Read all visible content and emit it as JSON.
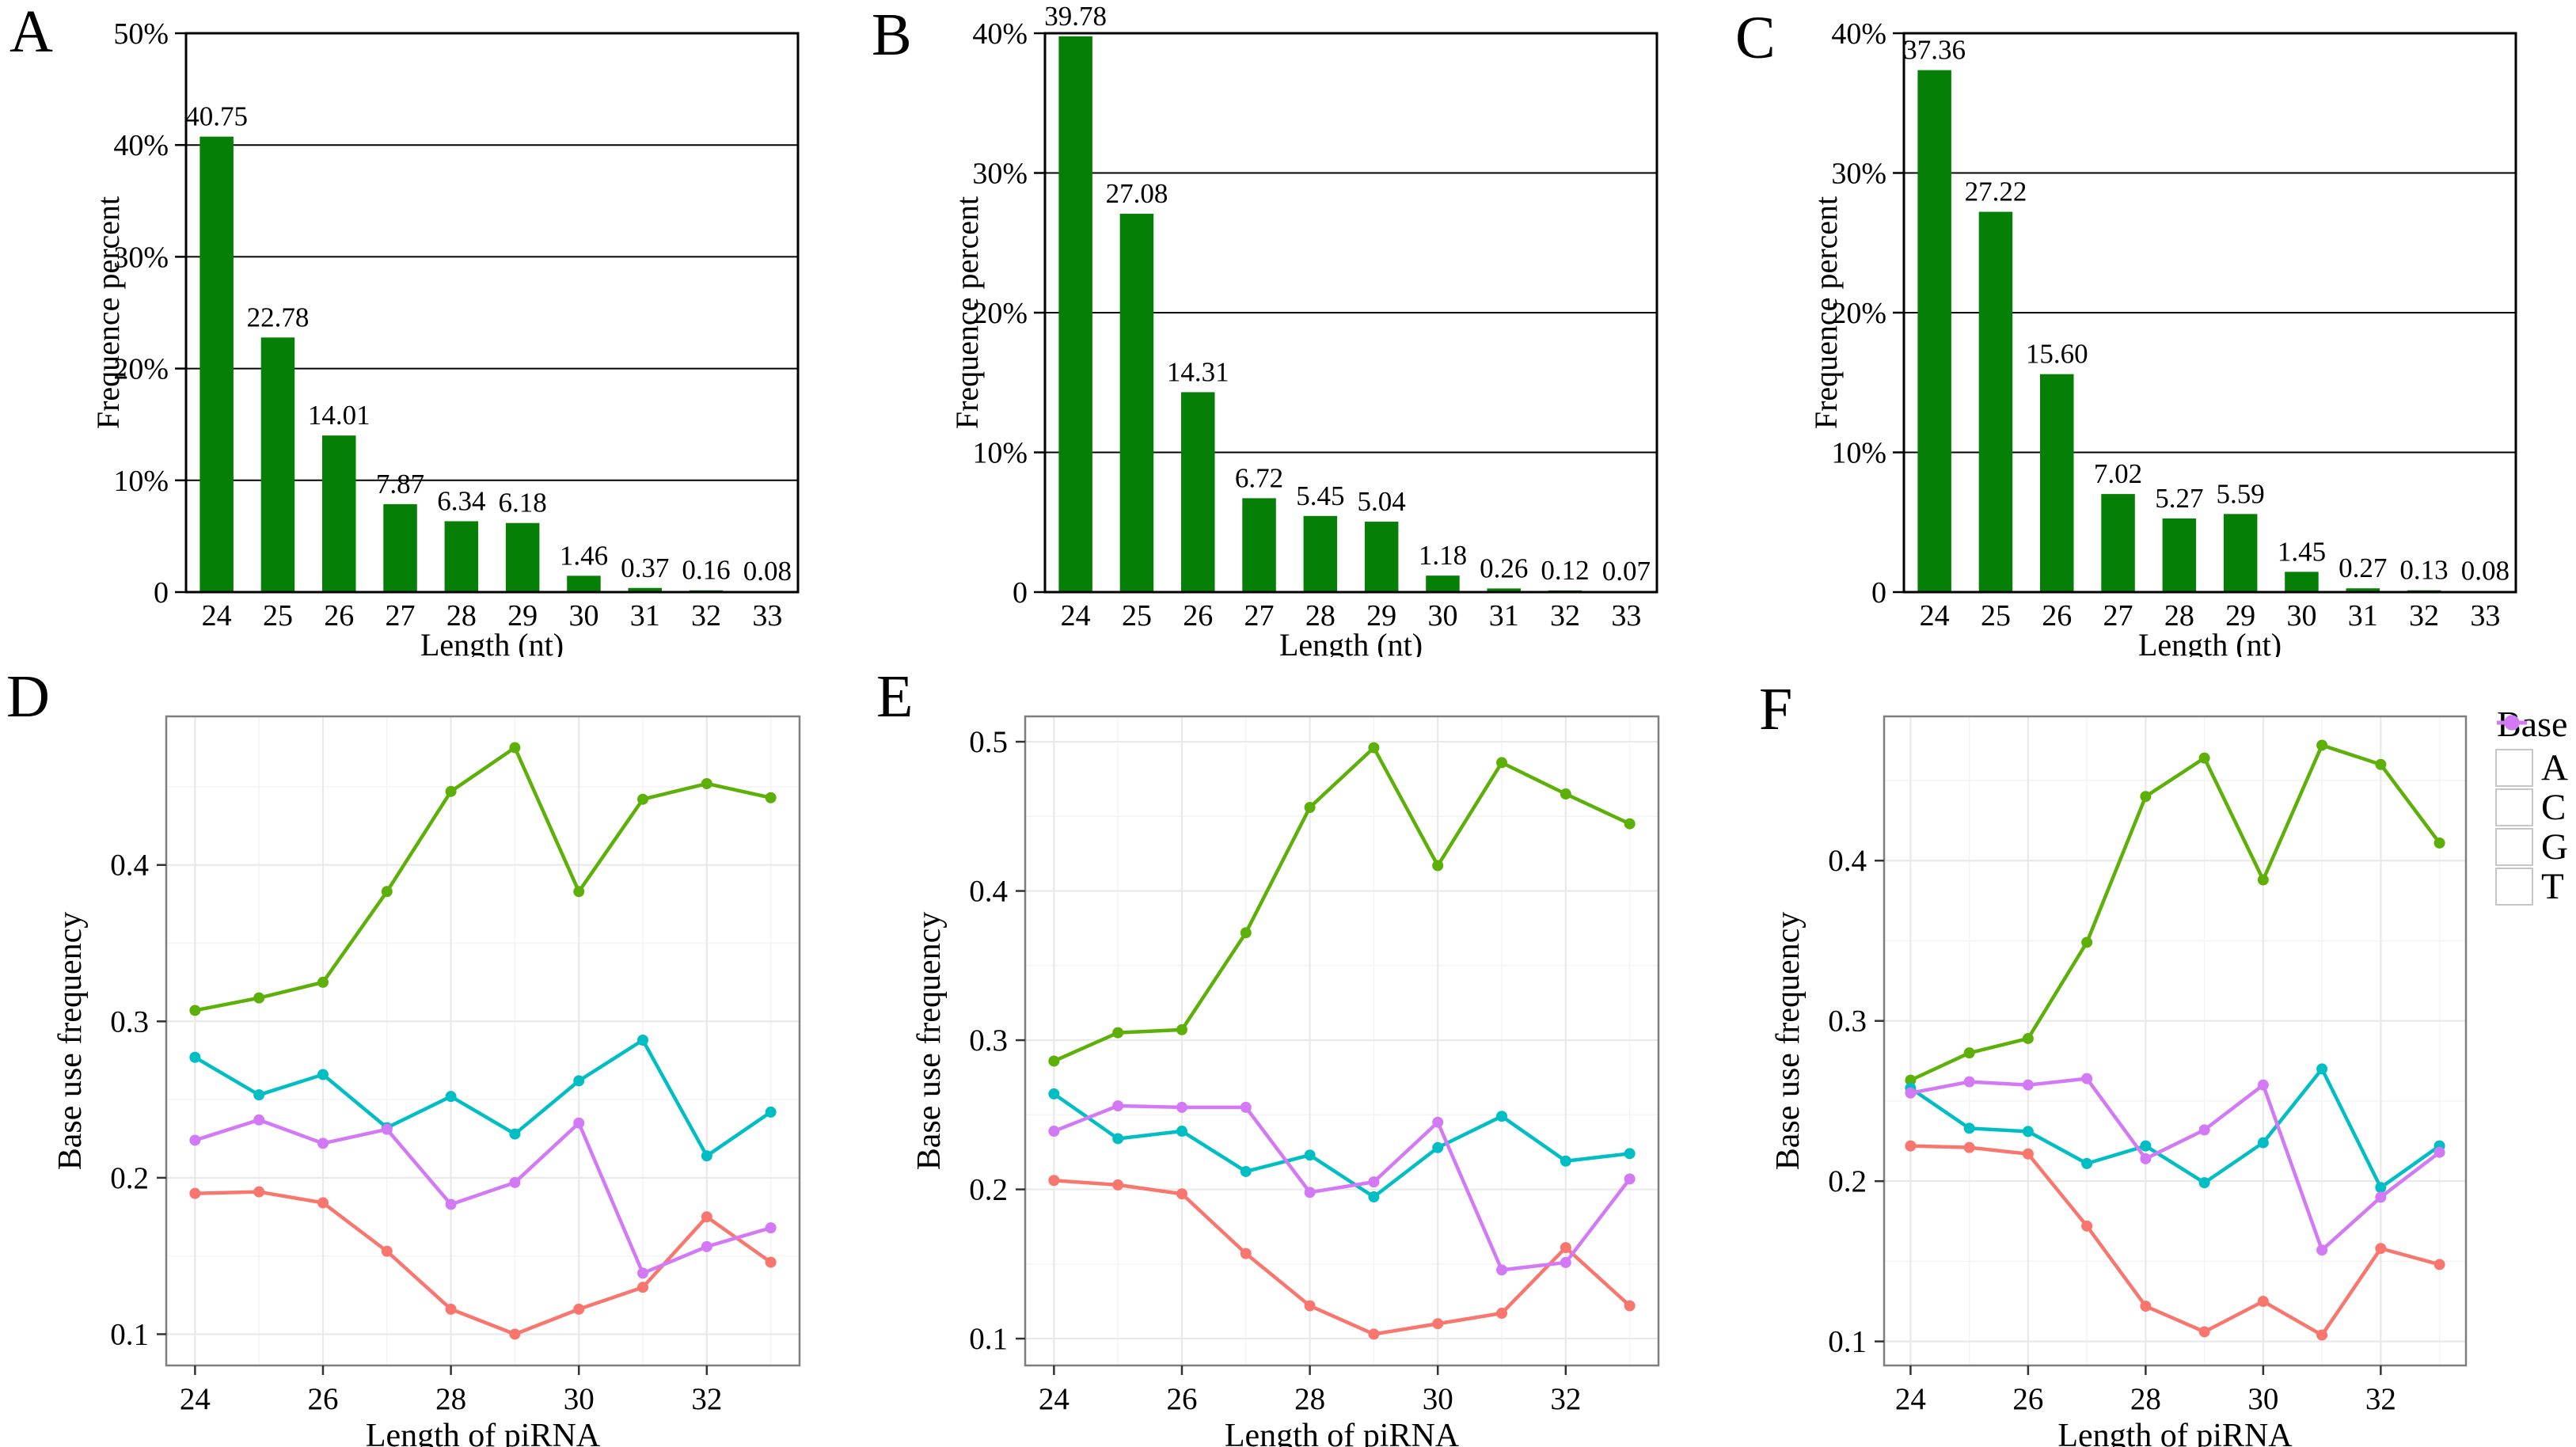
{
  "figure": {
    "background": "#ffffff"
  },
  "panels": [
    {
      "letter": "A"
    },
    {
      "letter": "B"
    },
    {
      "letter": "C"
    },
    {
      "letter": "D"
    },
    {
      "letter": "E"
    },
    {
      "letter": "F"
    }
  ],
  "legend": {
    "title": "Base",
    "items": [
      {
        "label": "A",
        "color": "#F8766D"
      },
      {
        "label": "C",
        "color": "#5CB008"
      },
      {
        "label": "G",
        "color": "#00BEC4"
      },
      {
        "label": "T",
        "color": "#D379F6"
      }
    ]
  },
  "chart_data": [
    {
      "panel": "A",
      "type": "bar",
      "title": "",
      "xlabel": "Length (nt)",
      "ylabel": "Frequence percent",
      "categories": [
        24,
        25,
        26,
        27,
        28,
        29,
        30,
        31,
        32,
        33
      ],
      "values": [
        40.75,
        22.78,
        14.01,
        7.87,
        6.34,
        6.18,
        1.46,
        0.37,
        0.16,
        0.08
      ],
      "value_labels": [
        "40.75",
        "22.78",
        "14.01",
        "7.87",
        "6.34",
        "6.18",
        "1.46",
        "0.37",
        "0.16",
        "0.08"
      ],
      "ylim": [
        0,
        50
      ],
      "y_ticks": [
        {
          "v": 0,
          "label": "0"
        },
        {
          "v": 10,
          "label": "10%"
        },
        {
          "v": 20,
          "label": "20%"
        },
        {
          "v": 30,
          "label": "30%"
        },
        {
          "v": 40,
          "label": "40%"
        },
        {
          "v": 50,
          "label": "50%"
        }
      ],
      "bar_color": "#057f05",
      "grid": "horizontal-black"
    },
    {
      "panel": "B",
      "type": "bar",
      "title": "",
      "xlabel": "Length (nt)",
      "ylabel": "Frequence percent",
      "categories": [
        24,
        25,
        26,
        27,
        28,
        29,
        30,
        31,
        32,
        33
      ],
      "values": [
        39.78,
        27.08,
        14.31,
        6.72,
        5.45,
        5.04,
        1.18,
        0.26,
        0.12,
        0.07
      ],
      "value_labels": [
        "39.78",
        "27.08",
        "14.31",
        "6.72",
        "5.45",
        "5.04",
        "1.18",
        "0.26",
        "0.12",
        "0.07"
      ],
      "ylim": [
        0,
        40
      ],
      "y_ticks": [
        {
          "v": 0,
          "label": "0"
        },
        {
          "v": 10,
          "label": "10%"
        },
        {
          "v": 20,
          "label": "20%"
        },
        {
          "v": 30,
          "label": "30%"
        },
        {
          "v": 40,
          "label": "40%"
        }
      ],
      "bar_color": "#057f05",
      "grid": "horizontal-black"
    },
    {
      "panel": "C",
      "type": "bar",
      "title": "",
      "xlabel": "Length (nt)",
      "ylabel": "Frequence percent",
      "categories": [
        24,
        25,
        26,
        27,
        28,
        29,
        30,
        31,
        32,
        33
      ],
      "values": [
        37.36,
        27.22,
        15.6,
        7.02,
        5.27,
        5.59,
        1.45,
        0.27,
        0.13,
        0.08
      ],
      "value_labels": [
        "37.36",
        "27.22",
        "15.60",
        "7.02",
        "5.27",
        "5.59",
        "1.45",
        "0.27",
        "0.13",
        "0.08"
      ],
      "ylim": [
        0,
        40
      ],
      "y_ticks": [
        {
          "v": 0,
          "label": "0"
        },
        {
          "v": 10,
          "label": "10%"
        },
        {
          "v": 20,
          "label": "20%"
        },
        {
          "v": 30,
          "label": "30%"
        },
        {
          "v": 40,
          "label": "40%"
        }
      ],
      "bar_color": "#057f05",
      "grid": "horizontal-black"
    },
    {
      "panel": "D",
      "type": "line",
      "title": "",
      "xlabel": "Length of piRNA",
      "ylabel": "Base use frequency",
      "x": [
        24,
        25,
        26,
        27,
        28,
        29,
        30,
        31,
        32,
        33
      ],
      "series": [
        {
          "name": "A",
          "color": "#F8766D",
          "values": [
            0.19,
            0.191,
            0.184,
            0.153,
            0.116,
            0.1,
            0.116,
            0.13,
            0.175,
            0.146
          ]
        },
        {
          "name": "C",
          "color": "#5CB008",
          "values": [
            0.307,
            0.315,
            0.325,
            0.383,
            0.447,
            0.475,
            0.383,
            0.442,
            0.452,
            0.443
          ]
        },
        {
          "name": "G",
          "color": "#00BEC4",
          "values": [
            0.277,
            0.253,
            0.266,
            0.232,
            0.252,
            0.228,
            0.262,
            0.288,
            0.214,
            0.242
          ]
        },
        {
          "name": "T",
          "color": "#D379F6",
          "values": [
            0.224,
            0.237,
            0.222,
            0.231,
            0.183,
            0.197,
            0.235,
            0.139,
            0.156,
            0.168
          ]
        }
      ],
      "ylim": [
        0.08,
        0.495
      ],
      "xlim": [
        23.55,
        33.45
      ],
      "y_major": [
        0.1,
        0.2,
        0.3,
        0.4
      ],
      "y_minor": [
        0.15,
        0.25,
        0.35,
        0.45
      ],
      "x_major": [
        24,
        26,
        28,
        30,
        32
      ],
      "x_minor": [
        25,
        27,
        29,
        31,
        33
      ],
      "grid": "ggplot-light",
      "legend_position": "none"
    },
    {
      "panel": "E",
      "type": "line",
      "title": "",
      "xlabel": "Length of piRNA",
      "ylabel": "Base use frequency",
      "x": [
        24,
        25,
        26,
        27,
        28,
        29,
        30,
        31,
        32,
        33
      ],
      "series": [
        {
          "name": "A",
          "color": "#F8766D",
          "values": [
            0.206,
            0.203,
            0.197,
            0.157,
            0.122,
            0.103,
            0.11,
            0.117,
            0.161,
            0.122
          ]
        },
        {
          "name": "C",
          "color": "#5CB008",
          "values": [
            0.286,
            0.305,
            0.307,
            0.372,
            0.456,
            0.496,
            0.417,
            0.486,
            0.465,
            0.445
          ]
        },
        {
          "name": "G",
          "color": "#00BEC4",
          "values": [
            0.264,
            0.234,
            0.239,
            0.212,
            0.223,
            0.195,
            0.228,
            0.249,
            0.219,
            0.224
          ]
        },
        {
          "name": "T",
          "color": "#D379F6",
          "values": [
            0.239,
            0.256,
            0.255,
            0.255,
            0.198,
            0.205,
            0.245,
            0.146,
            0.151,
            0.207
          ]
        }
      ],
      "ylim": [
        0.082,
        0.517
      ],
      "xlim": [
        23.55,
        33.45
      ],
      "y_major": [
        0.1,
        0.2,
        0.3,
        0.4,
        0.5
      ],
      "y_minor": [
        0.15,
        0.25,
        0.35,
        0.45
      ],
      "x_major": [
        24,
        26,
        28,
        30,
        32
      ],
      "x_minor": [
        25,
        27,
        29,
        31,
        33
      ],
      "grid": "ggplot-light",
      "legend_position": "none"
    },
    {
      "panel": "F",
      "type": "line",
      "title": "",
      "xlabel": "Length of piRNA",
      "ylabel": "Base use frequency",
      "x": [
        24,
        25,
        26,
        27,
        28,
        29,
        30,
        31,
        32,
        33
      ],
      "series": [
        {
          "name": "A",
          "color": "#F8766D",
          "values": [
            0.222,
            0.221,
            0.217,
            0.172,
            0.122,
            0.106,
            0.125,
            0.104,
            0.158,
            0.148
          ]
        },
        {
          "name": "C",
          "color": "#5CB008",
          "values": [
            0.263,
            0.28,
            0.289,
            0.349,
            0.44,
            0.464,
            0.388,
            0.472,
            0.46,
            0.411
          ]
        },
        {
          "name": "G",
          "color": "#00BEC4",
          "values": [
            0.258,
            0.233,
            0.231,
            0.211,
            0.222,
            0.199,
            0.224,
            0.27,
            0.196,
            0.222
          ]
        },
        {
          "name": "T",
          "color": "#D379F6",
          "values": [
            0.255,
            0.262,
            0.26,
            0.264,
            0.214,
            0.232,
            0.26,
            0.157,
            0.19,
            0.218
          ]
        }
      ],
      "ylim": [
        0.085,
        0.49
      ],
      "xlim": [
        23.55,
        33.45
      ],
      "y_major": [
        0.1,
        0.2,
        0.3,
        0.4
      ],
      "y_minor": [
        0.15,
        0.25,
        0.35,
        0.45
      ],
      "x_major": [
        24,
        26,
        28,
        30,
        32
      ],
      "x_minor": [
        25,
        27,
        29,
        31,
        33
      ],
      "grid": "ggplot-light",
      "legend_position": "right"
    }
  ]
}
